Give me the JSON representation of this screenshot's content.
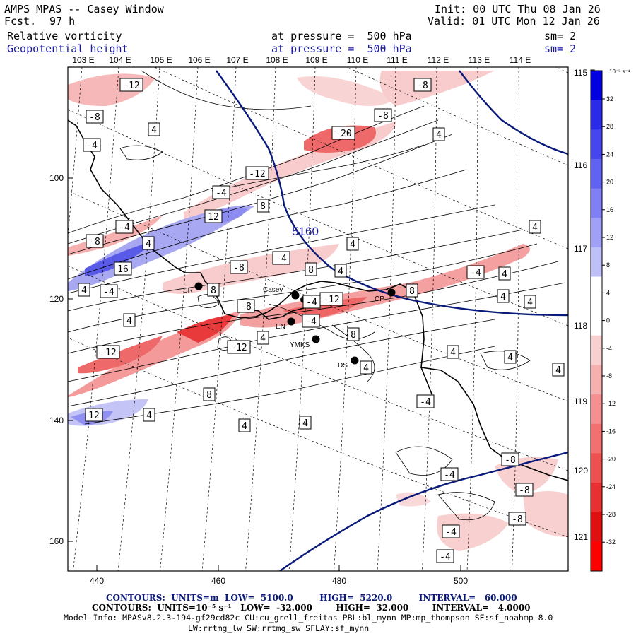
{
  "header": {
    "title": "AMPS MPAS -- Casey Window",
    "fcst_label": "Fcst.",
    "fcst_value": "97 h",
    "init": "Init: 00 UTC Thu 08 Jan 26",
    "valid": "Valid: 01 UTC Mon 12 Jan 26"
  },
  "fields": [
    {
      "name": "Relative vorticity",
      "level": "at pressure =  500 hPa",
      "sm": "sm= 2"
    },
    {
      "name": "Geopotential height",
      "level": "at pressure =  500 hPa",
      "sm": "sm= 2"
    }
  ],
  "map": {
    "lon_labels": [
      "103 E",
      "104 E",
      "105 E",
      "106 E",
      "107 E",
      "108 E",
      "109 E",
      "110 E",
      "111 E",
      "112 E",
      "113 E",
      "114 E"
    ],
    "lat_labels": [
      "115 E",
      "116 E",
      "117 E",
      "118 E",
      "119 E",
      "120 E",
      "121 E"
    ],
    "x_ticks": [
      "440",
      "460",
      "480",
      "500"
    ],
    "y_ticks": [
      "100",
      "120",
      "140",
      "160"
    ],
    "height_label": "5160",
    "stations": [
      {
        "name": "SR"
      },
      {
        "name": "Casey"
      },
      {
        "name": "CP"
      },
      {
        "name": "EN"
      },
      {
        "name": "YMKS"
      },
      {
        "name": "DS"
      }
    ],
    "vort_labels": [
      {
        "v": "-12"
      },
      {
        "v": "-8"
      },
      {
        "v": "-4"
      },
      {
        "v": "4"
      },
      {
        "v": "-20"
      },
      {
        "v": "-8"
      },
      {
        "v": "-8"
      },
      {
        "v": "4"
      },
      {
        "v": "-12"
      },
      {
        "v": "-4"
      },
      {
        "v": "8"
      },
      {
        "v": "12"
      },
      {
        "v": "-4"
      },
      {
        "v": "-8"
      },
      {
        "v": "4"
      },
      {
        "v": "4"
      },
      {
        "v": "-8"
      },
      {
        "v": "-4"
      },
      {
        "v": "4"
      },
      {
        "v": "16"
      },
      {
        "v": "4"
      },
      {
        "v": "-4"
      },
      {
        "v": "-4"
      },
      {
        "v": "8"
      },
      {
        "v": "8"
      },
      {
        "v": "-12"
      },
      {
        "v": "8"
      },
      {
        "v": "-12"
      },
      {
        "v": "-4"
      },
      {
        "v": "4"
      },
      {
        "v": "4"
      },
      {
        "v": "-4"
      },
      {
        "v": "4"
      },
      {
        "v": "4"
      },
      {
        "v": "8"
      },
      {
        "v": "4"
      },
      {
        "v": "-12"
      },
      {
        "v": "4"
      },
      {
        "v": "4"
      },
      {
        "v": "4"
      },
      {
        "v": "8"
      },
      {
        "v": "4"
      },
      {
        "v": "12"
      },
      {
        "v": "4"
      },
      {
        "v": "4"
      },
      {
        "v": "4"
      },
      {
        "v": "-4"
      },
      {
        "v": "-8"
      },
      {
        "v": "-4"
      },
      {
        "v": "-8"
      },
      {
        "v": "-8"
      },
      {
        "v": "-4"
      },
      {
        "v": "-4"
      },
      {
        "v": "4"
      },
      {
        "v": "-8"
      }
    ]
  },
  "colorbar": {
    "unit": "10⁻⁵ s⁻¹",
    "ticks": [
      "32",
      "28",
      "24",
      "20",
      "16",
      "12",
      "8",
      "4",
      "0",
      "-4",
      "-8",
      "-12",
      "-16",
      "-20",
      "-24",
      "-28",
      "-32"
    ],
    "colors": [
      "#0000e0",
      "#2a2ae8",
      "#4646ee",
      "#6262f2",
      "#8080f4",
      "#a0a0f6",
      "#c0c0f8",
      "#ffffff",
      "#ffffff",
      "#f8d0d0",
      "#f6b0b0",
      "#f49090",
      "#f27070",
      "#ee5050",
      "#e83030",
      "#e01010",
      "#ff0000"
    ]
  },
  "footer": {
    "line1": "CONTOURS:  UNITS=m  LOW=  5100.0         HIGH=  5220.0         INTERVAL=   60.000",
    "line2": "CONTOURS:  UNITS=10⁻⁵ s⁻¹   LOW=  -32.000        HIGH=  32.000        INTERVAL=   4.0000",
    "line3": "Model Info: MPASv8.2.3-194-gf29cd82c CU:cu_grell_freitas PBL:bl_mynn MP:mp_thompson SF:sf_noahmp 8.0",
    "line4": "LW:rrtmg_lw SW:rrtmg_sw SFLAY:sf_mynn"
  }
}
